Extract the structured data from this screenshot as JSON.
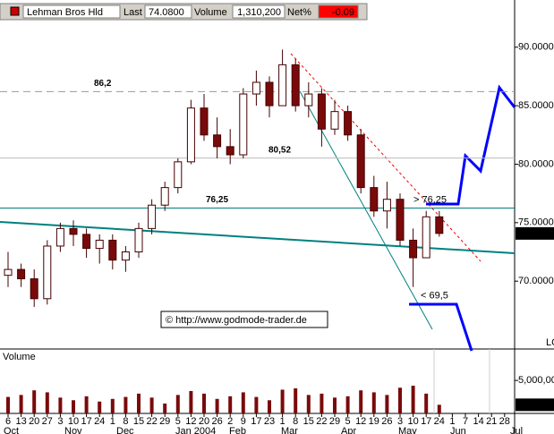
{
  "chart_data": {
    "type": "candlestick",
    "header": {
      "name": "Lehman Bros Hld",
      "last_label": "Last",
      "last": "74.0800",
      "volume_label": "Volume",
      "volume": "1,310,200",
      "net_label": "Net%",
      "net": "-0.09"
    },
    "categories": [
      "6",
      "13",
      "20",
      "27",
      "3",
      "10",
      "17",
      "24",
      "1",
      "8",
      "15",
      "22",
      "29",
      "5",
      "12",
      "20",
      "26",
      "2",
      "9",
      "17",
      "23",
      "1",
      "8",
      "15",
      "22",
      "29",
      "5",
      "12",
      "19",
      "26",
      "3",
      "10",
      "17",
      "24",
      "1",
      "7",
      "14",
      "21",
      "28"
    ],
    "months": [
      "Oct",
      "Nov",
      "Dec",
      "Jan 2004",
      "Feb",
      "Mar",
      "Apr",
      "May",
      "Jun",
      "Jul"
    ],
    "open": [
      70.5,
      71,
      70.2,
      68.5,
      73,
      74.5,
      74,
      72.8,
      73.5,
      71.8,
      72.5,
      74.5,
      76.5,
      78,
      80.2,
      84.8,
      82.5,
      81.5,
      80.8,
      86,
      87,
      85,
      88.5,
      85,
      86,
      83,
      84.5,
      82.5,
      78,
      76,
      77,
      73.5,
      72,
      75.5,
      null,
      null,
      null,
      null,
      null
    ],
    "high": [
      72.5,
      71.5,
      71,
      73.5,
      75,
      75.2,
      74.5,
      74,
      74,
      73,
      75,
      77,
      78.5,
      80.5,
      85.5,
      86,
      84,
      83,
      86.5,
      88,
      87.5,
      89.8,
      89,
      87,
      86.5,
      85.5,
      85,
      83,
      79,
      78.5,
      77.5,
      74.5,
      76,
      76,
      null,
      null,
      null,
      null,
      null
    ],
    "low": [
      69.5,
      69.5,
      67.8,
      68,
      72.5,
      73,
      72,
      71.5,
      71,
      70.8,
      72,
      74,
      76,
      77.5,
      80,
      82,
      80.5,
      80,
      80.5,
      85,
      84,
      85,
      84.5,
      84,
      81.5,
      82.5,
      82,
      77.5,
      75.5,
      74.5,
      73,
      69.5,
      72,
      73.8,
      null,
      null,
      null,
      null,
      null
    ],
    "close": [
      71,
      70.2,
      68.5,
      73,
      74.5,
      74,
      72.8,
      73.5,
      71.8,
      72.5,
      74.5,
      76.5,
      78,
      80.2,
      84.8,
      82.5,
      81.5,
      80.8,
      86,
      87,
      85,
      88.5,
      85,
      86,
      83,
      84.5,
      82.5,
      78,
      76,
      77,
      73.5,
      72,
      75.5,
      74.08,
      null,
      null,
      null,
      null,
      null
    ],
    "up_color": "#ffffff",
    "down_color": "#7a0a0a",
    "ylim": [
      64.2,
      92.2
    ],
    "yticks": [
      {
        "value": 70,
        "label": "70.0000"
      },
      {
        "value": 75,
        "label": "75.0000"
      },
      {
        "value": 80,
        "label": "80.0000"
      },
      {
        "value": 85,
        "label": "85.0000"
      },
      {
        "value": 90,
        "label": "90.0000"
      }
    ],
    "annotations": [
      {
        "text": "86,2",
        "value": 86.2
      },
      {
        "text": "80,52",
        "value": 80.52
      },
      {
        "text": "76,25",
        "value": 76.25
      }
    ],
    "targets": [
      {
        "text": "> 76,25",
        "value": 76.25
      },
      {
        "text": "< 69,5",
        "value": 69.5
      }
    ],
    "copyright": "© http://www.godmode-trader.de",
    "corner_text": "LC",
    "volume": {
      "title": "Volume",
      "color": "#7a0a0a",
      "values": [
        2500000,
        2800000,
        3500000,
        3200000,
        2400000,
        2000000,
        2600000,
        1800000,
        2200000,
        2500000,
        3000000,
        2400000,
        1500000,
        2800000,
        3400000,
        3000000,
        2200000,
        2600000,
        3200000,
        2500000,
        2000000,
        3600000,
        3800000,
        2800000,
        3000000,
        2400000,
        2600000,
        3500000,
        3200000,
        2800000,
        3900000,
        4200000,
        3000000,
        1310200,
        null,
        null,
        null,
        null,
        null
      ],
      "ylim": [
        0,
        9500000
      ],
      "yticks": [
        {
          "value": 5000000,
          "label": "5,000,000"
        }
      ]
    }
  }
}
